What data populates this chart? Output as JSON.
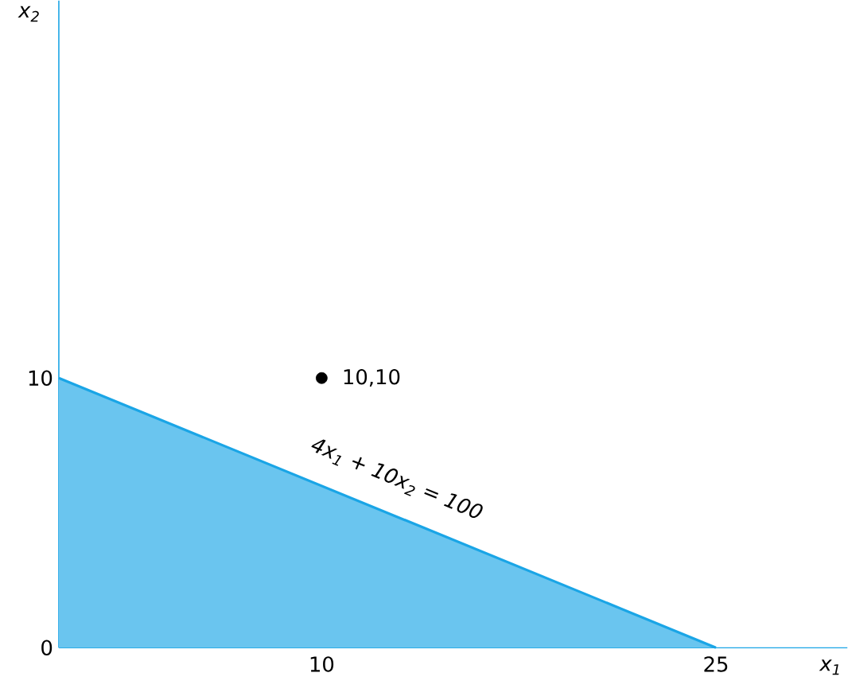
{
  "chart_data": {
    "type": "area",
    "xlabel": "x$_{1}$",
    "ylabel": "x$_{2}$",
    "xlim": [
      0,
      30
    ],
    "ylim": [
      0,
      24
    ],
    "xticks": [
      10,
      25
    ],
    "yticks": [
      0,
      10
    ],
    "grid": false,
    "series": [
      {
        "type": "area",
        "color": "#1aa5e6",
        "x": [
          0,
          25
        ],
        "values": [
          10,
          0
        ]
      },
      {
        "type": "scatter",
        "color": "#000000",
        "marker": "circle",
        "x": [
          10
        ],
        "values": [
          10
        ]
      }
    ],
    "annotations": [
      "4x$_{1}$ + 10x$_{2}$ = 100",
      "10,10"
    ]
  }
}
